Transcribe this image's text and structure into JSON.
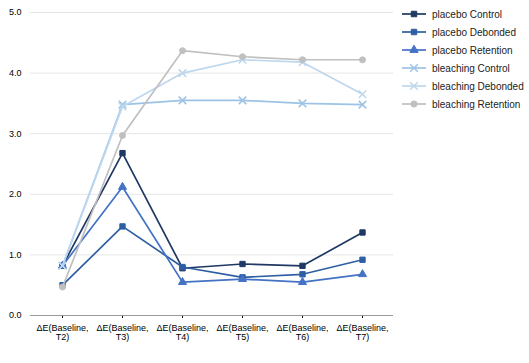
{
  "chart_data": {
    "type": "line",
    "categories": [
      "ΔE(Baseline,\nT2)",
      "ΔE(Baseline,\nT3)",
      "ΔE(Baseline,\nT4)",
      "ΔE(Baseline,\nT5)",
      "ΔE(Baseline,\nT6)",
      "ΔE(Baseline,\nT7)"
    ],
    "series": [
      {
        "name": "placebo Control",
        "color": "#1F3864",
        "marker": "square",
        "values": [
          0.82,
          2.68,
          0.78,
          0.85,
          0.82,
          1.37
        ]
      },
      {
        "name": "placebo Debonded",
        "color": "#2E5FA3",
        "marker": "square",
        "values": [
          0.5,
          1.47,
          0.8,
          0.63,
          0.68,
          0.92
        ]
      },
      {
        "name": "placebo Retention",
        "color": "#4472C4",
        "marker": "triangle",
        "values": [
          0.82,
          2.12,
          0.55,
          0.6,
          0.55,
          0.68
        ]
      },
      {
        "name": "bleaching Control",
        "color": "#9DC3E6",
        "marker": "x",
        "values": [
          0.82,
          3.48,
          3.55,
          3.55,
          3.5,
          3.48
        ]
      },
      {
        "name": "bleaching Debonded",
        "color": "#BDD7EE",
        "marker": "x",
        "values": [
          0.82,
          3.45,
          4.0,
          4.22,
          4.18,
          3.65
        ]
      },
      {
        "name": "bleaching Retention",
        "color": "#C0C0C0",
        "marker": "circle",
        "values": [
          0.47,
          2.97,
          4.37,
          4.27,
          4.22,
          4.22
        ]
      }
    ],
    "ylim": [
      0,
      5
    ],
    "yticks": [
      0,
      1,
      2,
      3,
      4,
      5
    ],
    "grid": true,
    "legend": "right"
  }
}
